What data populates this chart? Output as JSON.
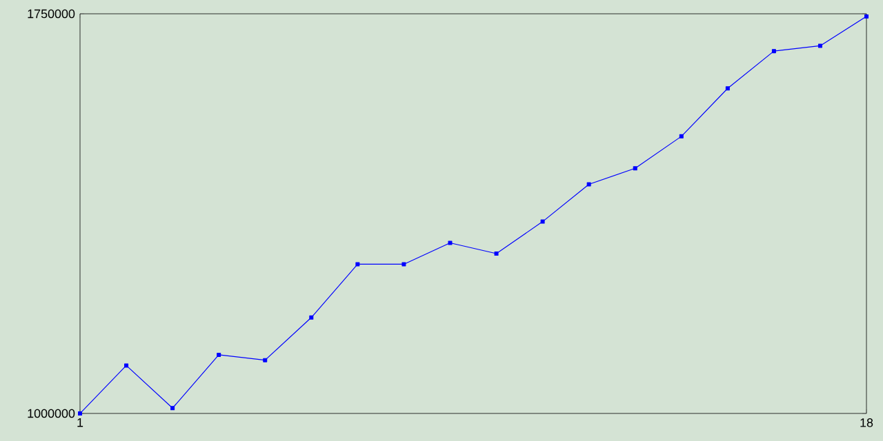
{
  "chart_data": {
    "type": "line",
    "x": [
      1,
      2,
      3,
      4,
      5,
      6,
      7,
      8,
      9,
      10,
      11,
      12,
      13,
      14,
      15,
      16,
      17,
      18
    ],
    "series": [
      {
        "color": "#0000ff",
        "values": [
          1000000,
          1090000,
          1010000,
          1110000,
          1100000,
          1180000,
          1280000,
          1280000,
          1320000,
          1300000,
          1360000,
          1430000,
          1460000,
          1520000,
          1610000,
          1680000,
          1690000,
          1745000
        ]
      }
    ],
    "xlim": [
      1,
      18
    ],
    "ylim": [
      1000000,
      1750000
    ],
    "xticks": [
      1,
      18
    ],
    "yticks": [
      1000000,
      1750000
    ],
    "grid": false,
    "marker": "square",
    "line_style": "solid"
  }
}
